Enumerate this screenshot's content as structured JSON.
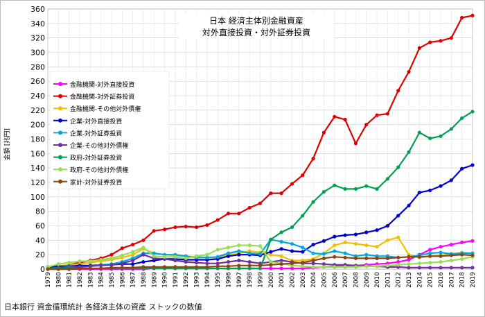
{
  "chart_data": {
    "type": "line",
    "title": "日本 経済主体別金融資産",
    "subtitle": "対外直接投資・対外証券投資",
    "ylabel": "金額 [兆円]",
    "xlabel": "",
    "ylim": [
      0,
      360
    ],
    "yticks": [
      0,
      20,
      40,
      60,
      80,
      100,
      120,
      140,
      160,
      180,
      200,
      220,
      240,
      260,
      280,
      300,
      320,
      340,
      360
    ],
    "grid": true,
    "legend_position": "left",
    "categories": [
      "1979",
      "1980",
      "1981",
      "1982",
      "1983",
      "1984",
      "1985",
      "1986",
      "1987",
      "1988",
      "1989",
      "1990",
      "1991",
      "1992",
      "1993",
      "1994",
      "1995",
      "1996",
      "1997",
      "1998",
      "1999",
      "2000",
      "2001",
      "2002",
      "2003",
      "2004",
      "2005",
      "2006",
      "2007",
      "2008",
      "2009",
      "2010",
      "2011",
      "2012",
      "2013",
      "2014",
      "2015",
      "2016",
      "2017",
      "2018",
      "2019"
    ],
    "series": [
      {
        "name": "金融機関-対外直接投資",
        "color": "#ff00ff",
        "values": [
          0,
          0,
          0,
          0,
          0,
          0,
          0,
          0,
          0,
          0,
          1,
          1,
          1,
          1,
          1,
          1,
          1,
          1,
          1,
          1,
          1,
          1,
          1,
          1,
          1,
          2,
          3,
          4,
          5,
          5,
          6,
          7,
          8,
          10,
          13,
          20,
          27,
          31,
          34,
          37,
          39
        ]
      },
      {
        "name": "金融機関-対外証券投資",
        "color": "#dd0000",
        "values": [
          2,
          4,
          6,
          9,
          12,
          15,
          20,
          29,
          34,
          40,
          53,
          55,
          58,
          59,
          58,
          61,
          68,
          77,
          77,
          85,
          91,
          105,
          105,
          118,
          130,
          153,
          189,
          211,
          207,
          174,
          200,
          213,
          215,
          247,
          273,
          306,
          314,
          316,
          320,
          348,
          351
        ]
      },
      {
        "name": "金融機関-その他対外債権",
        "color": "#f0c000",
        "values": [
          3,
          4,
          6,
          7,
          9,
          11,
          13,
          16,
          20,
          28,
          22,
          20,
          19,
          18,
          17,
          16,
          16,
          20,
          22,
          25,
          23,
          20,
          18,
          12,
          12,
          14,
          22,
          33,
          37,
          35,
          33,
          31,
          40,
          44,
          20,
          16,
          18,
          19,
          21,
          23,
          22
        ]
      },
      {
        "name": "企業-対外直接投資",
        "color": "#0000cc",
        "values": [
          3,
          4,
          4,
          5,
          5,
          6,
          6,
          7,
          7,
          10,
          12,
          14,
          14,
          13,
          13,
          13,
          14,
          18,
          20,
          20,
          19,
          24,
          28,
          25,
          24,
          34,
          39,
          45,
          47,
          48,
          51,
          54,
          60,
          74,
          88,
          106,
          109,
          115,
          123,
          139,
          144
        ]
      },
      {
        "name": "企業-対外証券投資",
        "color": "#00a8e0",
        "values": [
          1,
          2,
          3,
          3,
          4,
          6,
          7,
          10,
          15,
          22,
          22,
          20,
          20,
          18,
          16,
          16,
          17,
          22,
          25,
          22,
          21,
          41,
          38,
          35,
          30,
          22,
          21,
          25,
          22,
          18,
          20,
          18,
          18,
          16,
          17,
          19,
          22,
          23,
          21,
          22,
          22
        ]
      },
      {
        "name": "企業-その他対外債権",
        "color": "#7030a0",
        "values": [
          1,
          2,
          2,
          3,
          4,
          5,
          6,
          8,
          12,
          20,
          15,
          14,
          12,
          10,
          9,
          8,
          8,
          10,
          12,
          10,
          8,
          10,
          12,
          10,
          8,
          8,
          7,
          6,
          6,
          5,
          4,
          4,
          3,
          3,
          2,
          2,
          2,
          2,
          2,
          2,
          2
        ]
      },
      {
        "name": "政府-対外証券投資",
        "color": "#00a050",
        "values": [
          1,
          1,
          1,
          1,
          1,
          1,
          1,
          1,
          1,
          1,
          1,
          1,
          1,
          1,
          1,
          1,
          1,
          1,
          1,
          1,
          1,
          41,
          51,
          58,
          74,
          93,
          107,
          116,
          111,
          111,
          115,
          111,
          125,
          141,
          162,
          189,
          181,
          184,
          194,
          209,
          218
        ]
      },
      {
        "name": "政府-その他対外債権",
        "color": "#99dd55",
        "values": [
          3,
          7,
          9,
          11,
          11,
          13,
          15,
          19,
          24,
          30,
          18,
          17,
          17,
          15,
          18,
          20,
          27,
          30,
          33,
          33,
          32,
          10,
          8,
          5,
          4,
          3,
          3,
          3,
          3,
          3,
          4,
          4,
          5,
          6,
          7,
          8,
          9,
          10,
          12,
          14,
          17
        ]
      },
      {
        "name": "家計-対外証券投資",
        "color": "#8b4513",
        "values": [
          0,
          0,
          0,
          1,
          1,
          1,
          2,
          2,
          2,
          3,
          3,
          3,
          3,
          3,
          3,
          3,
          4,
          4,
          5,
          5,
          5,
          6,
          7,
          8,
          9,
          12,
          15,
          17,
          16,
          15,
          15,
          15,
          15,
          16,
          17,
          17,
          18,
          18,
          19,
          20,
          19
        ]
      }
    ]
  },
  "footer": {
    "source": "日本銀行 資金循環統計 各経済主体の資産 ストックの数値"
  }
}
